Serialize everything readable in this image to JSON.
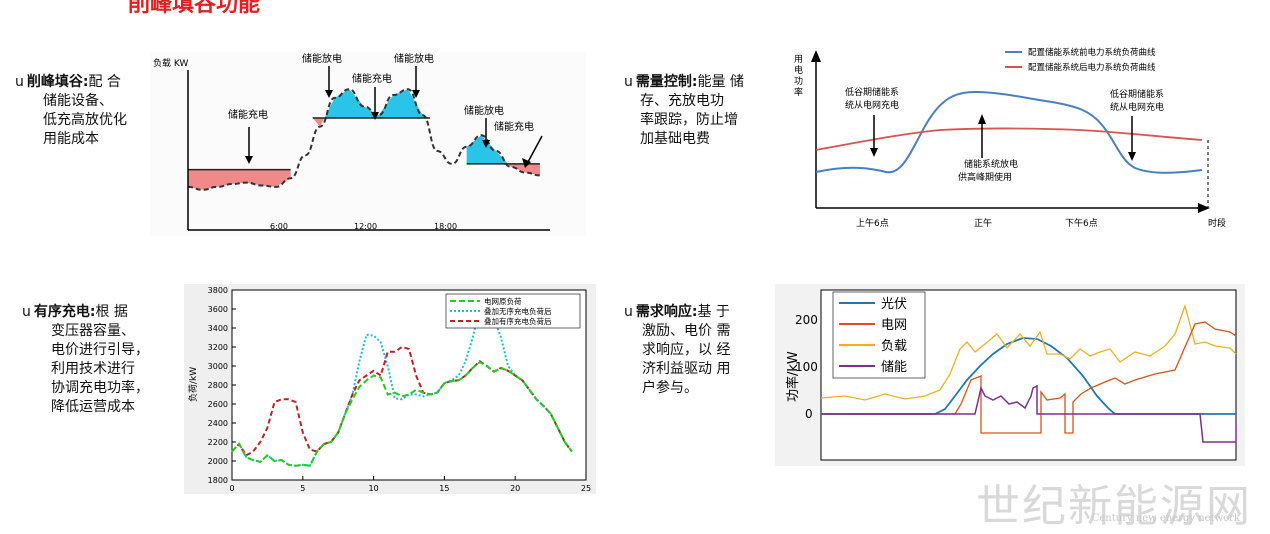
{
  "page": {
    "title": "削峰填谷功能",
    "watermark": "世纪新能源网",
    "watermark_sub": "Century new energy network"
  },
  "sections": [
    {
      "bullet": "u",
      "heading": "削峰填谷:",
      "lines": [
        "配 合",
        "储能设备、",
        "低充高放优化",
        "用能成本"
      ]
    },
    {
      "bullet": "u",
      "heading": "需量控制:",
      "lines": [
        "能量 储",
        "存、充放电功",
        "率跟踪，防止增",
        "加基础电费"
      ]
    },
    {
      "bullet": "u",
      "heading": "有序充电:",
      "lines": [
        "根 据",
        "变压器容量、",
        "电价进行引导，",
        "利用技术进行",
        "协调充电功率，",
        "降低运营成本"
      ]
    },
    {
      "bullet": "u",
      "heading": "需求响应:",
      "lines": [
        "基 于",
        "激励、电价 需",
        "求响应，以 经",
        "济利益驱动 用",
        "户参与。"
      ]
    }
  ],
  "chart_data": [
    {
      "type": "area",
      "ylabel": "负载 KW",
      "x_ticks": [
        "6:00",
        "12:00",
        "18:00"
      ],
      "annotations": [
        "储能充电",
        "储能放电",
        "储能充电",
        "储能放电",
        "储能放电",
        "储能充电"
      ],
      "hours": [
        0,
        1,
        2,
        3,
        4,
        5,
        6,
        7,
        8,
        9,
        10,
        11,
        12,
        13,
        14,
        15,
        16,
        17,
        18,
        19,
        20,
        21,
        22,
        23,
        24
      ],
      "load": [
        30,
        28,
        30,
        32,
        33,
        31,
        30,
        36,
        52,
        72,
        92,
        98,
        86,
        80,
        94,
        98,
        80,
        55,
        46,
        58,
        66,
        55,
        44,
        40,
        38
      ],
      "threshold": [
        {
          "from": 0,
          "to": 7,
          "level": 42
        },
        {
          "from": 8.5,
          "to": 16.5,
          "level": 78
        },
        {
          "from": 19,
          "to": 24,
          "level": 46
        }
      ],
      "colors": {
        "discharge": "#29c4e8",
        "charge": "#f08a8a"
      }
    },
    {
      "type": "line",
      "ylabel": "用电功率",
      "xlabel": "时段",
      "x_ticks": [
        "上午6点",
        "正午",
        "下午6点"
      ],
      "series": [
        {
          "name": "配置储能系统前电力系统负荷曲线",
          "color": "#4a7fc0"
        },
        {
          "name": "配置储能系统后电力系统负荷曲线",
          "color": "#d9534f"
        }
      ],
      "annotations": [
        "低谷期储能系统从电网充电",
        "储能系统放电供高峰期使用",
        "低谷期储能系统从电网充电"
      ]
    },
    {
      "type": "line",
      "ylabel": "负荷/kW",
      "xlim": [
        0,
        25
      ],
      "ylim": [
        1800,
        3800
      ],
      "x_ticks": [
        0,
        5,
        10,
        15,
        20,
        25
      ],
      "y_ticks": [
        1800,
        2000,
        2200,
        2400,
        2600,
        2800,
        3000,
        3200,
        3400,
        3600,
        3800
      ],
      "x": [
        0,
        0.5,
        1,
        1.5,
        2,
        2.5,
        3,
        3.5,
        4,
        4.5,
        5,
        5.5,
        6,
        6.5,
        7,
        7.5,
        8,
        8.5,
        9,
        9.5,
        10,
        10.5,
        11,
        11.5,
        12,
        12.5,
        13,
        13.5,
        14,
        14.5,
        15,
        15.5,
        16,
        16.5,
        17,
        17.5,
        18,
        18.5,
        19,
        19.5,
        20,
        20.5,
        21,
        21.5,
        22,
        22.5,
        23,
        23.5,
        24
      ],
      "series": [
        {
          "name": "电网原负荷",
          "color": "#22cc22",
          "values": [
            2100,
            2180,
            2040,
            2010,
            1990,
            2060,
            2000,
            2010,
            1960,
            1950,
            1960,
            1950,
            2100,
            2180,
            2200,
            2300,
            2500,
            2650,
            2780,
            2850,
            2900,
            2880,
            2700,
            2720,
            2680,
            2700,
            2750,
            2720,
            2700,
            2720,
            2820,
            2840,
            2850,
            2900,
            2980,
            3040,
            3000,
            2940,
            2980,
            2950,
            2900,
            2850,
            2750,
            2650,
            2580,
            2500,
            2350,
            2200,
            2100
          ]
        },
        {
          "name": "叠加无序充电负荷后",
          "color": "#22b8d8",
          "values": [
            2100,
            2180,
            2040,
            2010,
            1990,
            2060,
            2000,
            2010,
            1960,
            1950,
            1960,
            1950,
            2100,
            2180,
            2200,
            2300,
            2500,
            2700,
            3050,
            3330,
            3320,
            3250,
            3000,
            2660,
            2650,
            2700,
            2700,
            2680,
            2700,
            2720,
            2820,
            2850,
            2900,
            3050,
            3300,
            3600,
            3700,
            3500,
            3300,
            3000,
            2900,
            2850,
            2750,
            2650,
            2580,
            2500,
            2350,
            2200,
            2100
          ]
        },
        {
          "name": "叠加有序充电负荷后",
          "color": "#bb2222",
          "values": [
            2100,
            2180,
            2060,
            2100,
            2200,
            2350,
            2620,
            2650,
            2650,
            2620,
            2300,
            2120,
            2100,
            2180,
            2200,
            2300,
            2500,
            2700,
            2850,
            2900,
            2950,
            2900,
            3150,
            3150,
            3200,
            3180,
            2900,
            2720,
            2700,
            2720,
            2820,
            2840,
            2850,
            2900,
            2980,
            3050,
            3000,
            2940,
            2980,
            2950,
            2900,
            2850,
            2750,
            2650,
            2580,
            2500,
            2350,
            2200,
            2100
          ]
        }
      ]
    },
    {
      "type": "line",
      "ylabel": "功率/kW",
      "y_ticks": [
        0,
        100,
        200
      ],
      "series": [
        {
          "name": "光伏",
          "color": "#1f77b4"
        },
        {
          "name": "电网",
          "color": "#d95319"
        },
        {
          "name": "负载",
          "color": "#edb120"
        },
        {
          "name": "储能",
          "color": "#7e2f8e"
        }
      ]
    }
  ]
}
